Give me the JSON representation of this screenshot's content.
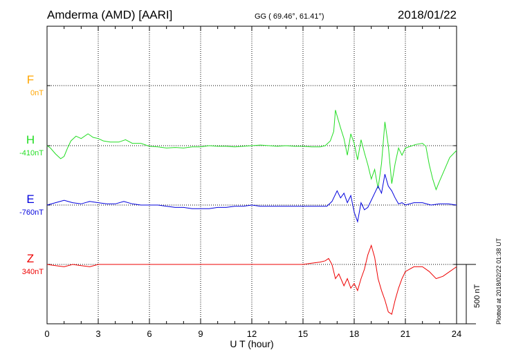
{
  "header": {
    "station": "Amderma (AMD)  [AARI]",
    "coords": "GG ( 69.46°,  61.41°)",
    "date": "2018/01/22"
  },
  "side_note": "Plotted at 2018/02/22 01:38 UT",
  "scale_label": "500 nT",
  "chart_data": {
    "type": "line",
    "xlabel": "U T (hour)",
    "xlim": [
      0,
      24
    ],
    "xticks": [
      "0",
      "3",
      "6",
      "9",
      "12",
      "15",
      "18",
      "21",
      "24"
    ],
    "scale_bar_nT": 500,
    "components": [
      {
        "name": "F",
        "baseline": "0nT",
        "color": "#ffa500",
        "points": []
      },
      {
        "name": "H",
        "baseline": "-410nT",
        "color": "#22dd22",
        "points": [
          [
            0,
            0
          ],
          [
            0.2,
            -20
          ],
          [
            0.5,
            -70
          ],
          [
            0.8,
            -110
          ],
          [
            1.0,
            -90
          ],
          [
            1.2,
            -20
          ],
          [
            1.4,
            40
          ],
          [
            1.7,
            80
          ],
          [
            2.0,
            60
          ],
          [
            2.4,
            100
          ],
          [
            2.7,
            70
          ],
          [
            3.0,
            60
          ],
          [
            3.3,
            40
          ],
          [
            3.7,
            30
          ],
          [
            4.2,
            30
          ],
          [
            4.6,
            50
          ],
          [
            5.0,
            20
          ],
          [
            5.5,
            20
          ],
          [
            6.0,
            -5
          ],
          [
            6.5,
            -10
          ],
          [
            7.0,
            -20
          ],
          [
            7.5,
            -15
          ],
          [
            8.0,
            -20
          ],
          [
            8.5,
            -10
          ],
          [
            9.0,
            -10
          ],
          [
            9.5,
            0
          ],
          [
            10.0,
            -5
          ],
          [
            10.5,
            -5
          ],
          [
            11.0,
            -10
          ],
          [
            11.5,
            -5
          ],
          [
            12.0,
            0
          ],
          [
            12.5,
            5
          ],
          [
            13.0,
            0
          ],
          [
            13.5,
            -5
          ],
          [
            14.0,
            0
          ],
          [
            14.5,
            -5
          ],
          [
            15.0,
            -5
          ],
          [
            15.5,
            -10
          ],
          [
            16.0,
            -10
          ],
          [
            16.3,
            0
          ],
          [
            16.6,
            40
          ],
          [
            16.8,
            120
          ],
          [
            16.9,
            300
          ],
          [
            17.0,
            250
          ],
          [
            17.2,
            150
          ],
          [
            17.4,
            60
          ],
          [
            17.6,
            -80
          ],
          [
            17.8,
            100
          ],
          [
            18.0,
            20
          ],
          [
            18.2,
            -120
          ],
          [
            18.4,
            50
          ],
          [
            18.6,
            -60
          ],
          [
            18.8,
            -160
          ],
          [
            19.0,
            -280
          ],
          [
            19.2,
            -200
          ],
          [
            19.4,
            -360
          ],
          [
            19.6,
            -150
          ],
          [
            19.8,
            200
          ],
          [
            20.0,
            0
          ],
          [
            20.2,
            -320
          ],
          [
            20.4,
            -150
          ],
          [
            20.6,
            -20
          ],
          [
            20.8,
            -80
          ],
          [
            21.0,
            -20
          ],
          [
            21.3,
            -5
          ],
          [
            21.6,
            10
          ],
          [
            22.0,
            20
          ],
          [
            22.2,
            -5
          ],
          [
            22.4,
            -160
          ],
          [
            22.6,
            -280
          ],
          [
            22.8,
            -370
          ],
          [
            23.0,
            -300
          ],
          [
            23.3,
            -200
          ],
          [
            23.6,
            -100
          ],
          [
            24.0,
            -40
          ]
        ]
      },
      {
        "name": "E",
        "baseline": "-760nT",
        "color": "#0000dd",
        "points": [
          [
            0,
            0
          ],
          [
            0.5,
            20
          ],
          [
            1.0,
            40
          ],
          [
            1.5,
            20
          ],
          [
            2.0,
            10
          ],
          [
            2.5,
            30
          ],
          [
            3.0,
            20
          ],
          [
            3.5,
            10
          ],
          [
            4.0,
            10
          ],
          [
            4.5,
            30
          ],
          [
            5.0,
            10
          ],
          [
            5.5,
            0
          ],
          [
            6.0,
            0
          ],
          [
            6.5,
            0
          ],
          [
            7.0,
            -10
          ],
          [
            7.5,
            -20
          ],
          [
            8.0,
            -20
          ],
          [
            8.5,
            -30
          ],
          [
            9.0,
            -30
          ],
          [
            9.5,
            -30
          ],
          [
            10.0,
            -20
          ],
          [
            10.5,
            -20
          ],
          [
            11.0,
            -10
          ],
          [
            11.5,
            -10
          ],
          [
            12.0,
            0
          ],
          [
            12.5,
            -10
          ],
          [
            13.0,
            -10
          ],
          [
            13.5,
            -10
          ],
          [
            14.0,
            -10
          ],
          [
            14.5,
            -10
          ],
          [
            15.0,
            -10
          ],
          [
            15.5,
            -10
          ],
          [
            16.0,
            -10
          ],
          [
            16.4,
            -10
          ],
          [
            16.7,
            30
          ],
          [
            17.0,
            120
          ],
          [
            17.2,
            60
          ],
          [
            17.4,
            100
          ],
          [
            17.6,
            20
          ],
          [
            17.8,
            80
          ],
          [
            18.0,
            -60
          ],
          [
            18.2,
            -140
          ],
          [
            18.4,
            20
          ],
          [
            18.6,
            -40
          ],
          [
            18.8,
            -20
          ],
          [
            19.0,
            40
          ],
          [
            19.2,
            100
          ],
          [
            19.4,
            160
          ],
          [
            19.6,
            100
          ],
          [
            19.8,
            260
          ],
          [
            20.0,
            160
          ],
          [
            20.2,
            120
          ],
          [
            20.4,
            60
          ],
          [
            20.6,
            10
          ],
          [
            20.8,
            20
          ],
          [
            21.0,
            0
          ],
          [
            21.5,
            20
          ],
          [
            22.0,
            20
          ],
          [
            22.5,
            0
          ],
          [
            23.0,
            10
          ],
          [
            23.5,
            10
          ],
          [
            24.0,
            0
          ]
        ]
      },
      {
        "name": "Z",
        "baseline": "340nT",
        "color": "#ee0000",
        "points": [
          [
            0,
            0
          ],
          [
            0.5,
            -10
          ],
          [
            1.0,
            -20
          ],
          [
            1.5,
            0
          ],
          [
            2.0,
            -10
          ],
          [
            2.5,
            -20
          ],
          [
            3.0,
            0
          ],
          [
            4.0,
            0
          ],
          [
            5.0,
            0
          ],
          [
            6.0,
            0
          ],
          [
            7.0,
            0
          ],
          [
            8.0,
            0
          ],
          [
            9.0,
            0
          ],
          [
            10.0,
            0
          ],
          [
            11.0,
            0
          ],
          [
            12.0,
            0
          ],
          [
            13.0,
            0
          ],
          [
            14.0,
            0
          ],
          [
            15.0,
            0
          ],
          [
            15.5,
            10
          ],
          [
            16.0,
            20
          ],
          [
            16.3,
            30
          ],
          [
            16.5,
            50
          ],
          [
            16.7,
            0
          ],
          [
            16.9,
            -120
          ],
          [
            17.1,
            -80
          ],
          [
            17.4,
            -180
          ],
          [
            17.6,
            -120
          ],
          [
            17.8,
            -200
          ],
          [
            18.0,
            -160
          ],
          [
            18.2,
            -220
          ],
          [
            18.4,
            -120
          ],
          [
            18.6,
            -40
          ],
          [
            18.8,
            80
          ],
          [
            19.0,
            160
          ],
          [
            19.2,
            60
          ],
          [
            19.4,
            -120
          ],
          [
            19.6,
            -220
          ],
          [
            19.8,
            -300
          ],
          [
            20.0,
            -400
          ],
          [
            20.2,
            -420
          ],
          [
            20.4,
            -300
          ],
          [
            20.6,
            -200
          ],
          [
            20.8,
            -120
          ],
          [
            21.0,
            -60
          ],
          [
            21.5,
            -20
          ],
          [
            22.0,
            -20
          ],
          [
            22.4,
            -60
          ],
          [
            22.8,
            -120
          ],
          [
            23.2,
            -100
          ],
          [
            23.6,
            -60
          ],
          [
            24.0,
            -20
          ]
        ]
      }
    ]
  }
}
